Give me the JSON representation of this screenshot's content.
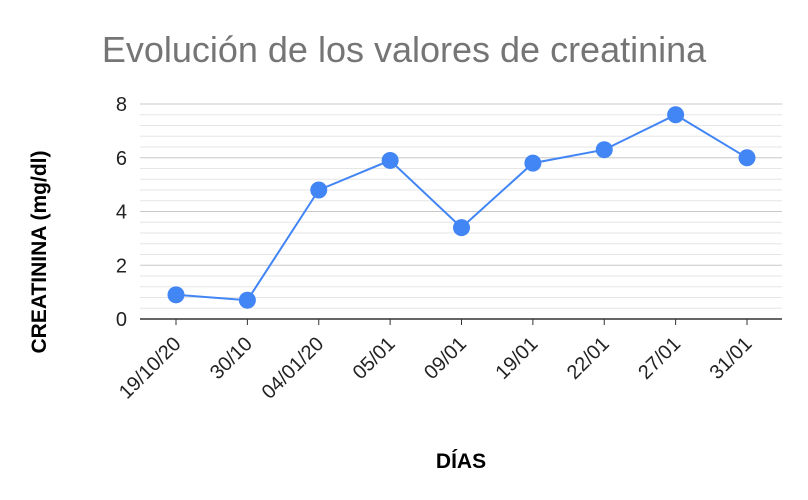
{
  "chart_data": {
    "type": "line",
    "title": "Evolución de los valores de creatinina",
    "xlabel": "DÍAS",
    "ylabel": "CREATININA (mg/dl)",
    "categories": [
      "19/10/20",
      "30/10",
      "04/01/20",
      "05/01",
      "09/01",
      "19/01",
      "22/01",
      "27/01",
      "31/01"
    ],
    "series": [
      {
        "values": [
          0.9,
          0.7,
          4.8,
          5.9,
          3.4,
          5.8,
          6.3,
          7.6,
          6.0
        ]
      }
    ],
    "ylim": [
      0,
      8
    ],
    "yticks": [
      "0",
      "2",
      "4",
      "6",
      "8"
    ],
    "minor_step": 0.4,
    "grid": true,
    "colors": {
      "series": "#4285f4",
      "major_grid": "#c8c8c8",
      "minor_grid": "#e6e6e6",
      "axis": "#333333"
    }
  }
}
